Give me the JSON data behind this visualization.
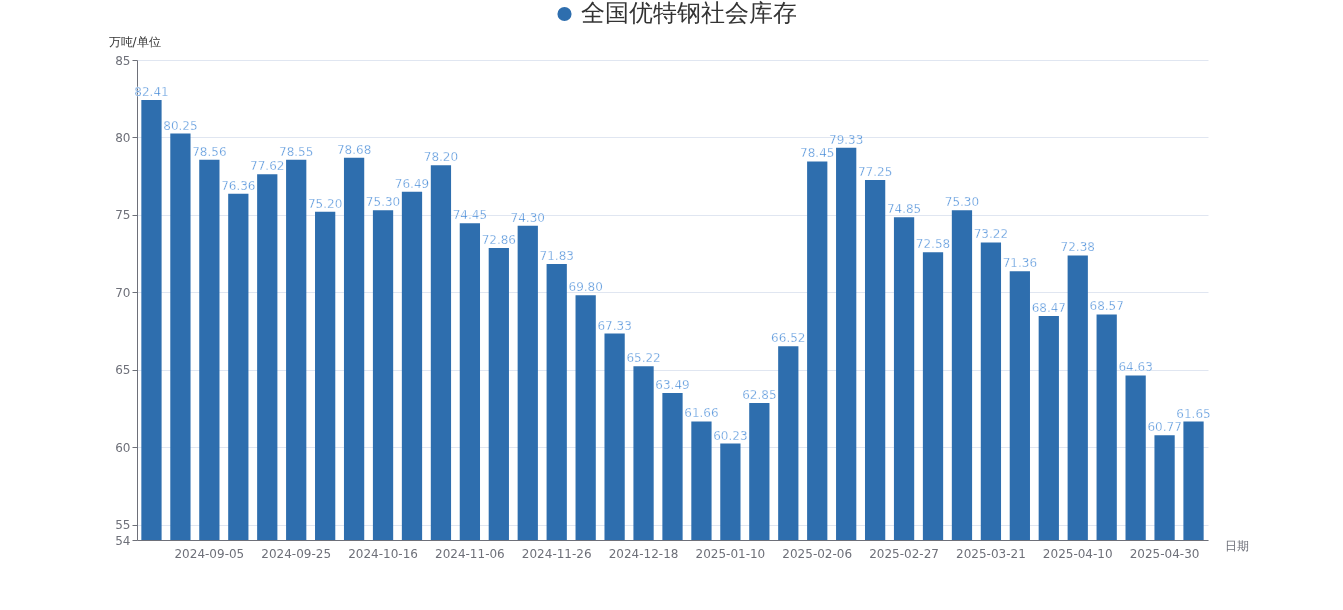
{
  "chart_data": {
    "type": "bar",
    "xlabel": "日期",
    "ylabel": "万吨/单位",
    "categories": [
      null,
      null,
      "2024-09-05",
      null,
      null,
      "2024-09-25",
      null,
      null,
      "2024-10-16",
      null,
      null,
      "2024-11-06",
      null,
      null,
      "2024-11-26",
      null,
      null,
      "2024-12-18",
      null,
      null,
      "2025-01-10",
      null,
      null,
      "2025-02-06",
      null,
      null,
      "2025-02-27",
      null,
      null,
      "2025-03-21",
      null,
      null,
      "2025-04-10",
      null,
      null,
      "2025-04-30",
      null
    ],
    "series": [
      {
        "name": "全国优特钢社会库存",
        "color": "#2e6eae",
        "values": [
          82.41,
          80.25,
          78.56,
          76.36,
          77.62,
          78.55,
          75.2,
          78.68,
          75.3,
          76.49,
          78.2,
          74.45,
          72.86,
          74.3,
          71.83,
          69.8,
          67.33,
          65.22,
          63.49,
          61.66,
          60.23,
          62.85,
          66.52,
          78.45,
          79.33,
          77.25,
          74.85,
          72.58,
          75.3,
          73.22,
          71.36,
          68.47,
          72.38,
          68.57,
          64.63,
          60.77,
          61.65
        ],
        "value_labels": [
          "82.41",
          "80.25",
          "78.56",
          "76.36",
          "77.62",
          "78.55",
          "75.20",
          "78.68",
          "75.30",
          "76.49",
          "78.20",
          "74.45",
          "72.86",
          "74.30",
          "71.83",
          "69.80",
          "67.33",
          "65.22",
          "63.49",
          "61.66",
          "60.23",
          "62.85",
          "66.52",
          "78.45",
          "79.33",
          "77.25",
          "74.85",
          "72.58",
          "75.30",
          "73.22",
          "71.36",
          "68.47",
          "72.38",
          "68.57",
          "64.63",
          "60.77",
          "61.65"
        ]
      }
    ],
    "ylim": [
      54,
      85
    ],
    "yticks": [
      54,
      55,
      60,
      65,
      70,
      75,
      80,
      85
    ],
    "grid": "y",
    "legend": "top"
  }
}
